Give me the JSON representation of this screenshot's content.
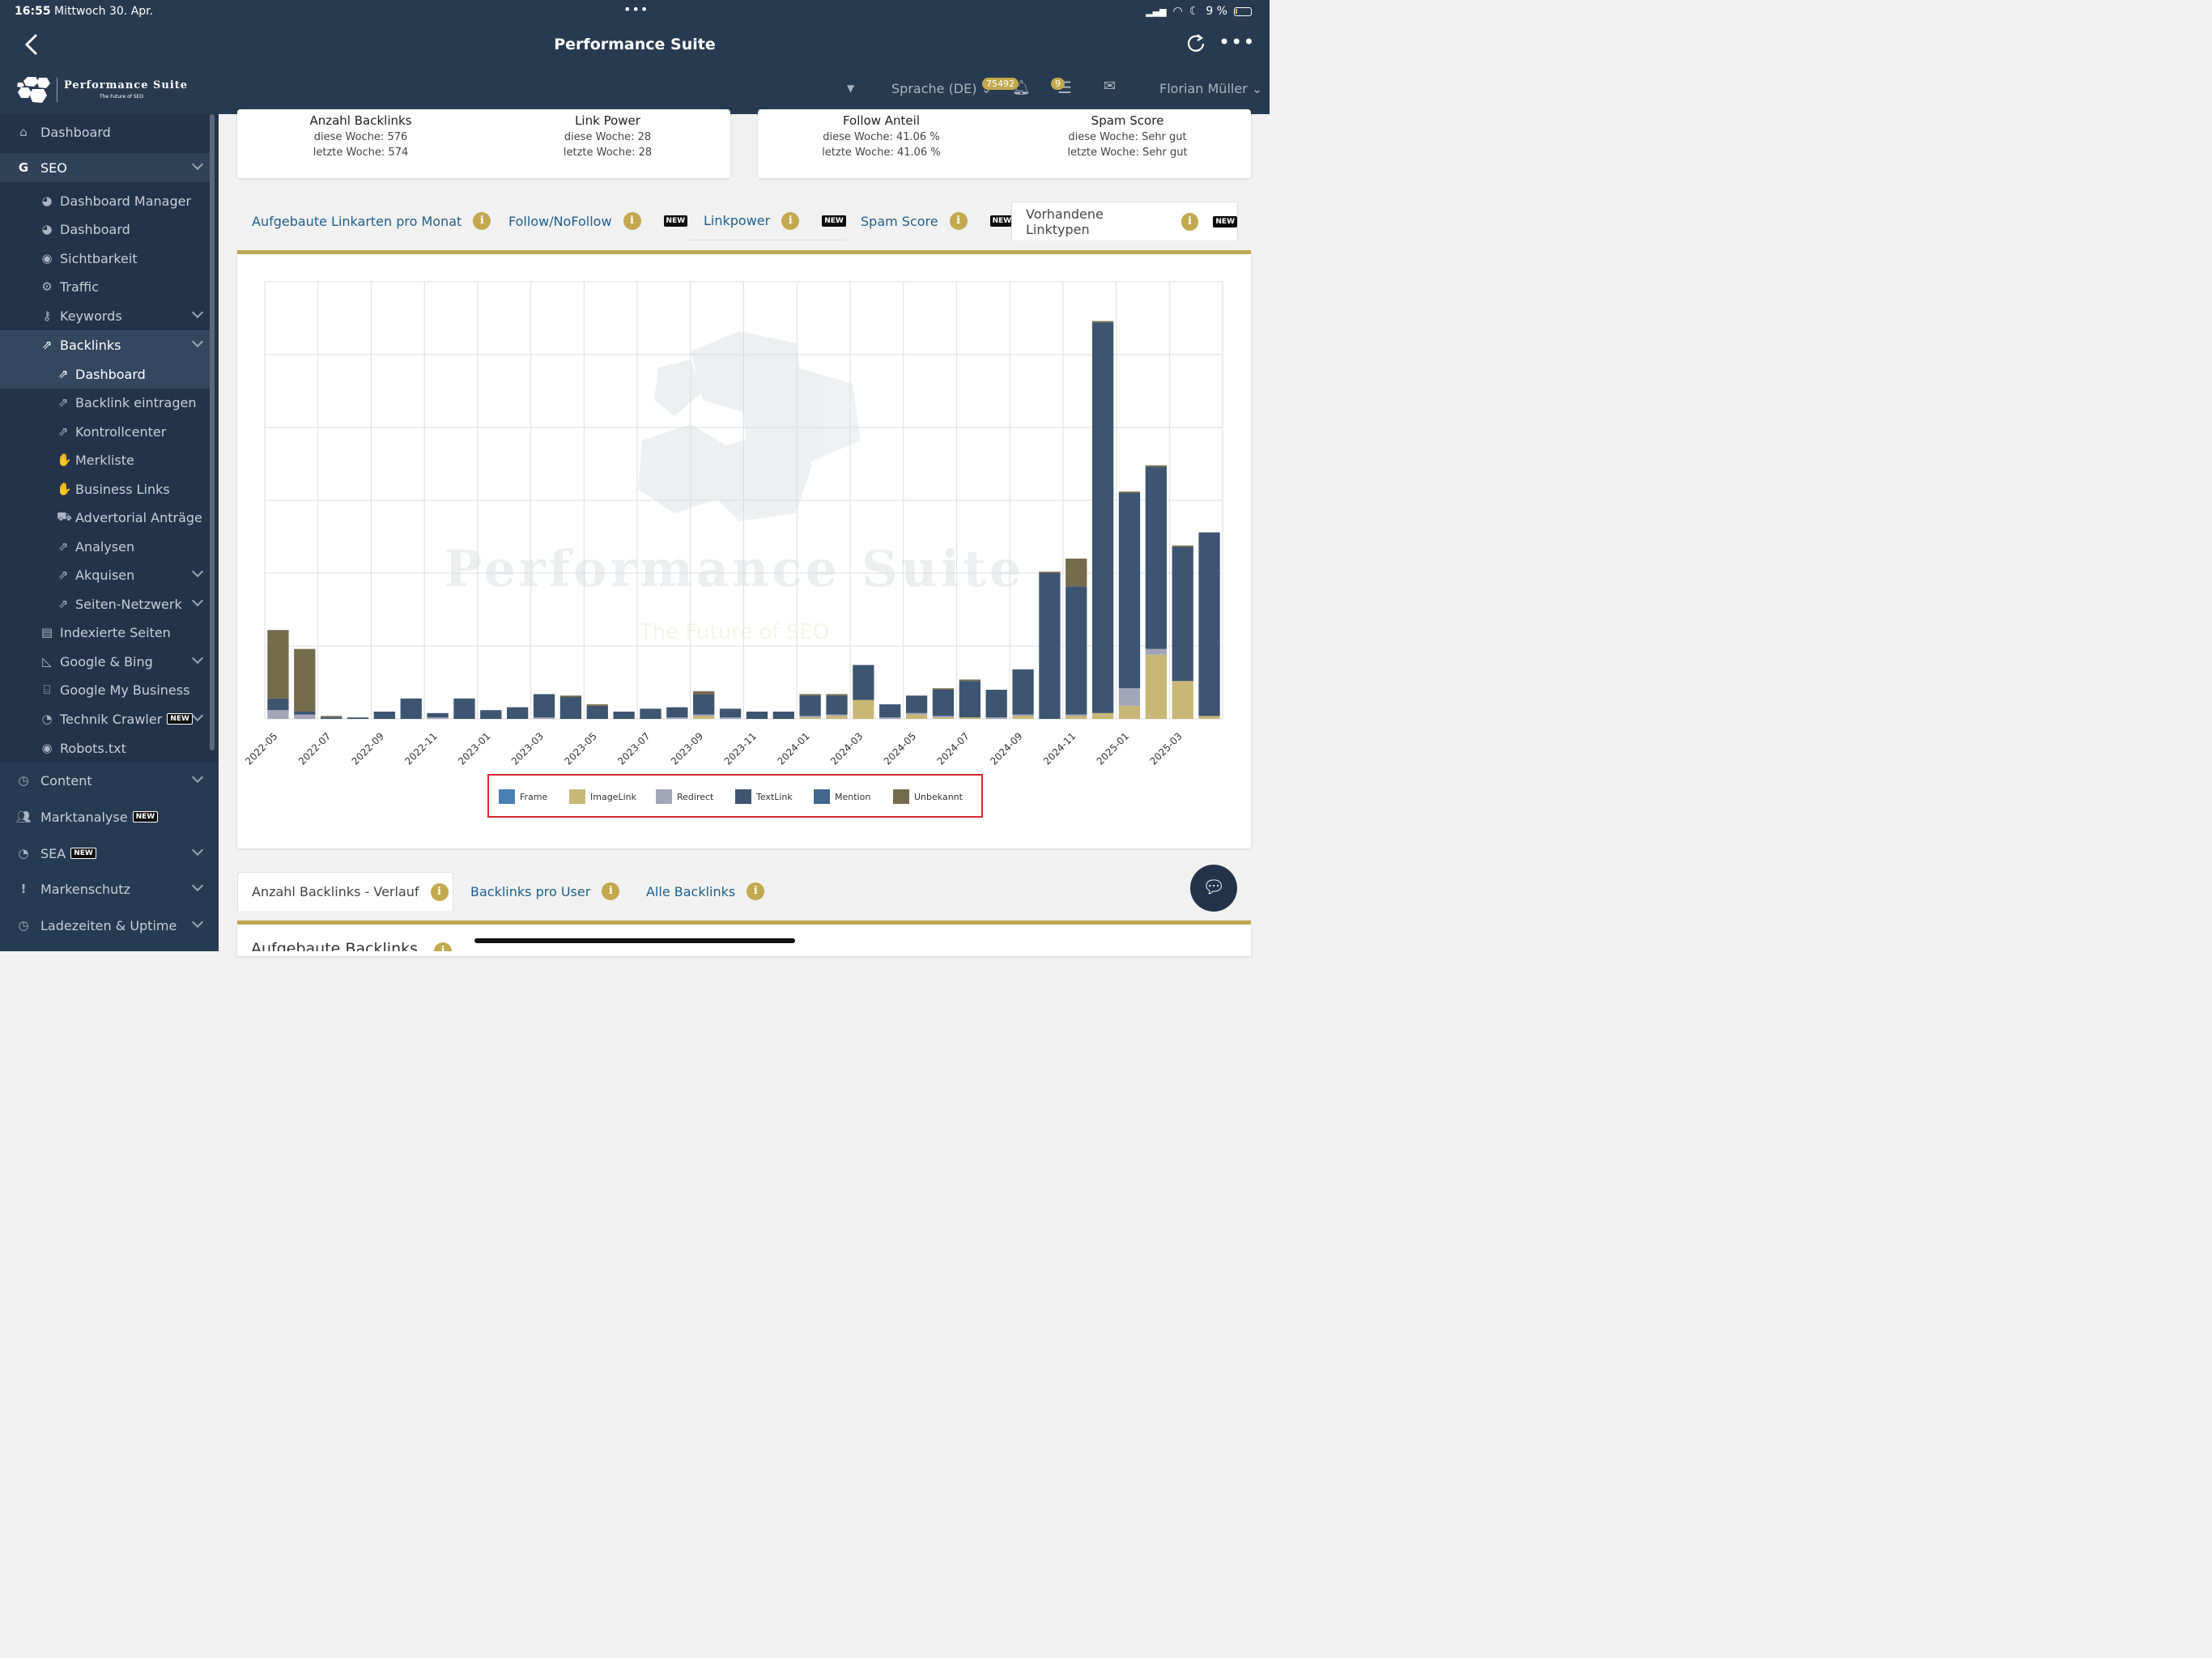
{
  "status": {
    "time": "16:55",
    "date": "Mittwoch 30. Apr.",
    "battery": "9 %"
  },
  "app": {
    "title": "Performance Suite"
  },
  "brand": {
    "name": "Performance Suite",
    "tagline": "The Future of SEO"
  },
  "topbar": {
    "language": "Sprache (DE)",
    "notif_count": "75492",
    "list_count": "9",
    "user": "Florian Müller"
  },
  "sidebar": {
    "items": [
      {
        "label": "Dashboard",
        "icon": "home-icon",
        "level": 0
      },
      {
        "label": "SEO",
        "icon": "google-icon",
        "level": 0,
        "chevron": true
      },
      {
        "label": "Dashboard Manager",
        "icon": "palette-icon",
        "level": 1
      },
      {
        "label": "Dashboard",
        "icon": "palette-icon",
        "level": 1
      },
      {
        "label": "Sichtbarkeit",
        "icon": "eye-icon",
        "level": 1
      },
      {
        "label": "Traffic",
        "icon": "gears-icon",
        "level": 1
      },
      {
        "label": "Keywords",
        "icon": "key-icon",
        "level": 1,
        "chevron": true
      },
      {
        "label": "Backlinks",
        "icon": "external-link-icon",
        "level": 1,
        "chevron": true
      },
      {
        "label": "Dashboard",
        "icon": "external-link-icon",
        "level": 2
      },
      {
        "label": "Backlink eintragen",
        "icon": "external-link-icon",
        "level": 2
      },
      {
        "label": "Kontrollcenter",
        "icon": "external-link-icon",
        "level": 2
      },
      {
        "label": "Merkliste",
        "icon": "handshake-icon",
        "level": 2
      },
      {
        "label": "Business Links",
        "icon": "handshake-icon",
        "level": 2
      },
      {
        "label": "Advertorial Anträge",
        "icon": "cart-icon",
        "level": 2
      },
      {
        "label": "Analysen",
        "icon": "external-link-icon",
        "level": 2
      },
      {
        "label": "Akquisen",
        "icon": "external-link-icon",
        "level": 2,
        "chevron": true
      },
      {
        "label": "Seiten-Netzwerk",
        "icon": "external-link-icon",
        "level": 2,
        "chevron": true
      },
      {
        "label": "Indexierte Seiten",
        "icon": "file-icon",
        "level": 1
      },
      {
        "label": "Google & Bing",
        "icon": "area-chart-icon",
        "level": 1,
        "chevron": true
      },
      {
        "label": "Google My Business",
        "icon": "store-icon",
        "level": 1
      },
      {
        "label": "Technik Crawler",
        "icon": "pie-icon",
        "level": 1,
        "chevron": true,
        "new": "NEW"
      },
      {
        "label": "Robots.txt",
        "icon": "eye-icon",
        "level": 1
      },
      {
        "label": "Content",
        "icon": "clock-icon",
        "level": 0,
        "chevron": true
      },
      {
        "label": "Marktanalyse",
        "icon": "users-icon",
        "level": 0,
        "new": "NEW"
      },
      {
        "label": "SEA",
        "icon": "pie-icon",
        "level": 0,
        "chevron": true,
        "new": "NEW"
      },
      {
        "label": "Markenschutz",
        "icon": "exclamation-icon",
        "level": 0,
        "chevron": true
      },
      {
        "label": "Ladezeiten & Uptime",
        "icon": "clock-icon",
        "level": 0,
        "chevron": true
      }
    ]
  },
  "stats": [
    {
      "title": "Anzahl Backlinks",
      "this_week": "diese Woche: 576",
      "last_week": "letzte Woche: 574"
    },
    {
      "title": "Link Power",
      "this_week": "diese Woche: 28",
      "last_week": "letzte Woche: 28"
    },
    {
      "title": "Follow Anteil",
      "this_week": "diese Woche: 41.06 %",
      "last_week": "letzte Woche: 41.06 %"
    },
    {
      "title": "Spam Score",
      "this_week": "diese Woche: Sehr gut",
      "last_week": "letzte Woche: Sehr gut"
    }
  ],
  "tabs": [
    {
      "label": "Aufgebaute Linkarten pro Monat",
      "new": ""
    },
    {
      "label": "Follow/NoFollow",
      "new": "NEW"
    },
    {
      "label": "Linkpower",
      "new": "NEW"
    },
    {
      "label": "Spam Score",
      "new": "NEW"
    },
    {
      "label": "Vorhandene Linktypen",
      "new": "NEW"
    }
  ],
  "watermark": {
    "title": "Performance Suite",
    "subtitle": "The Future of SEO"
  },
  "chart_data": {
    "type": "bar",
    "stacked": true,
    "categories": [
      "2022-05",
      "2022-06",
      "2022-07",
      "2022-08",
      "2022-09",
      "2022-10",
      "2022-11",
      "2022-12",
      "2023-01",
      "2023-02",
      "2023-03",
      "2023-04",
      "2023-05",
      "2023-06",
      "2023-07",
      "2023-08",
      "2023-09",
      "2023-10",
      "2023-11",
      "2023-12",
      "2024-01",
      "2024-02",
      "2024-03",
      "2024-04",
      "2024-05",
      "2024-06",
      "2024-07",
      "2024-08",
      "2024-09",
      "2024-10",
      "2024-11",
      "2024-12",
      "2025-01",
      "2025-02",
      "2025-03",
      "2025-04"
    ],
    "tick_labels": [
      "2022-05",
      "2022-07",
      "2022-09",
      "2022-11",
      "2023-01",
      "2023-03",
      "2023-05",
      "2023-07",
      "2023-09",
      "2023-11",
      "2024-01",
      "2024-03",
      "2024-05",
      "2024-07",
      "2024-09",
      "2024-11",
      "2025-01",
      "2025-03"
    ],
    "ylim": [
      0,
      300
    ],
    "grid": true,
    "legend_position": "bottom",
    "series": [
      {
        "name": "Frame",
        "color": "#4a7fb5",
        "values": [
          0,
          0,
          0,
          0,
          0,
          0,
          0,
          0,
          0,
          0,
          0,
          0,
          0,
          0,
          0,
          0,
          0,
          0,
          0,
          0,
          0,
          0,
          0,
          0,
          0,
          0,
          0,
          0,
          0,
          0,
          0,
          0,
          0,
          0,
          0,
          0
        ]
      },
      {
        "name": "ImageLink",
        "color": "#c9b778",
        "values": [
          0,
          0,
          0,
          0,
          0,
          0,
          0,
          0,
          0,
          0,
          0,
          0,
          0,
          0,
          0,
          0,
          2,
          0,
          0,
          0,
          1,
          2,
          13,
          0,
          3,
          1,
          1,
          0,
          2,
          0,
          2,
          4,
          9,
          44,
          26,
          2
        ]
      },
      {
        "name": "Redirect",
        "color": "#a3a5b8",
        "values": [
          6,
          3,
          0,
          0,
          0,
          0,
          1,
          0,
          0,
          0,
          1,
          0,
          0,
          0,
          0,
          1,
          1,
          1,
          0,
          0,
          1,
          1,
          0,
          1,
          1,
          1,
          0,
          1,
          1,
          0,
          1,
          0,
          12,
          4,
          0,
          0
        ]
      },
      {
        "name": "TextLink",
        "color": "#3d5570",
        "values": [
          8,
          2,
          1,
          1,
          5,
          14,
          3,
          14,
          6,
          8,
          16,
          15,
          9,
          5,
          7,
          7,
          14,
          6,
          5,
          5,
          14,
          13,
          24,
          9,
          12,
          18,
          25,
          19,
          31,
          100,
          88,
          268,
          134,
          125,
          92,
          126
        ]
      },
      {
        "name": "Mention",
        "color": "#44678e",
        "values": [
          0,
          0,
          0,
          0,
          0,
          0,
          0,
          0,
          0,
          0,
          0,
          0,
          0,
          0,
          0,
          0,
          0,
          0,
          0,
          0,
          0,
          0,
          0,
          0,
          0,
          0,
          0,
          0,
          0,
          0,
          0,
          0,
          0,
          0,
          0,
          0
        ]
      },
      {
        "name": "Unbekannt",
        "color": "#756b4d",
        "values": [
          47,
          43,
          1,
          0,
          0,
          0,
          0,
          0,
          0,
          0,
          0,
          1,
          1,
          0,
          0,
          0,
          2,
          0,
          0,
          0,
          1,
          1,
          0,
          0,
          0,
          1,
          1,
          0,
          0,
          1,
          19,
          1,
          1,
          1,
          1,
          0
        ]
      }
    ]
  },
  "bottom_tabs": [
    {
      "label": "Anzahl Backlinks - Verlauf"
    },
    {
      "label": "Backlinks pro User"
    },
    {
      "label": "Alle Backlinks"
    }
  ],
  "bottom_heading": "Aufgebaute Backlinks",
  "colors": {
    "navy": "#283a50",
    "sidebar": "#23344a",
    "gold": "#c2a94f",
    "link": "#1f5f8b"
  }
}
